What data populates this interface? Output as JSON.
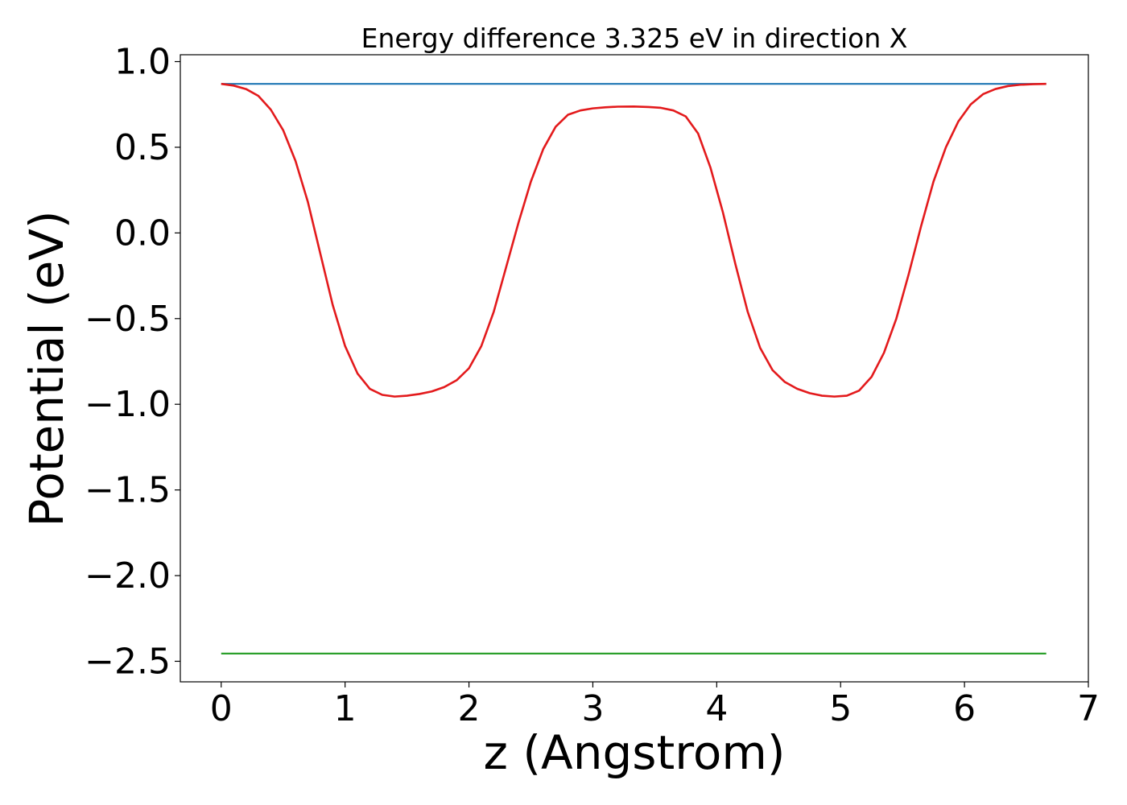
{
  "chart_data": {
    "type": "line",
    "title": "Energy difference 3.325 eV in direction X",
    "xlabel": "z (Angstrom)",
    "ylabel": "Potential (eV)",
    "xlim": [
      -0.33,
      7.0
    ],
    "ylim": [
      -2.62,
      1.04
    ],
    "xticks": [
      0,
      1,
      2,
      3,
      4,
      5,
      6,
      7
    ],
    "xtick_labels": [
      "0",
      "1",
      "2",
      "3",
      "4",
      "5",
      "6",
      "7"
    ],
    "yticks": [
      1.0,
      0.5,
      0.0,
      -0.5,
      -1.0,
      -1.5,
      -2.0,
      -2.5
    ],
    "ytick_labels": [
      "1.0",
      "0.5",
      "0.0",
      "−0.5",
      "−1.0",
      "−1.5",
      "−2.0",
      "−2.5"
    ],
    "grid": false,
    "series": [
      {
        "color": "#1f77b4",
        "x": [
          0,
          6.66
        ],
        "y": [
          0.87,
          0.87
        ]
      },
      {
        "color": "#2ca02c",
        "x": [
          0,
          6.66
        ],
        "y": [
          -2.455,
          -2.455
        ]
      },
      {
        "color": "#e31a1c",
        "x": [
          0.0,
          0.1,
          0.2,
          0.3,
          0.4,
          0.5,
          0.6,
          0.7,
          0.8,
          0.9,
          1.0,
          1.1,
          1.2,
          1.3,
          1.4,
          1.5,
          1.6,
          1.7,
          1.8,
          1.9,
          2.0,
          2.1,
          2.2,
          2.3,
          2.4,
          2.5,
          2.6,
          2.7,
          2.8,
          2.9,
          3.0,
          3.1,
          3.2,
          3.33,
          3.45,
          3.55,
          3.65,
          3.75,
          3.85,
          3.95,
          4.05,
          4.15,
          4.25,
          4.35,
          4.45,
          4.55,
          4.65,
          4.75,
          4.85,
          4.95,
          5.05,
          5.15,
          5.25,
          5.35,
          5.45,
          5.55,
          5.65,
          5.75,
          5.85,
          5.95,
          6.05,
          6.15,
          6.25,
          6.35,
          6.45,
          6.55,
          6.66
        ],
        "y": [
          0.87,
          0.86,
          0.84,
          0.8,
          0.72,
          0.6,
          0.42,
          0.18,
          -0.12,
          -0.42,
          -0.66,
          -0.82,
          -0.91,
          -0.945,
          -0.955,
          -0.95,
          -0.94,
          -0.925,
          -0.9,
          -0.86,
          -0.79,
          -0.66,
          -0.46,
          -0.2,
          0.06,
          0.3,
          0.49,
          0.62,
          0.69,
          0.715,
          0.727,
          0.733,
          0.737,
          0.738,
          0.735,
          0.73,
          0.715,
          0.68,
          0.58,
          0.38,
          0.12,
          -0.18,
          -0.46,
          -0.67,
          -0.8,
          -0.87,
          -0.91,
          -0.935,
          -0.95,
          -0.955,
          -0.95,
          -0.92,
          -0.84,
          -0.7,
          -0.5,
          -0.24,
          0.04,
          0.3,
          0.5,
          0.65,
          0.75,
          0.81,
          0.84,
          0.857,
          0.865,
          0.868,
          0.87
        ]
      }
    ]
  }
}
